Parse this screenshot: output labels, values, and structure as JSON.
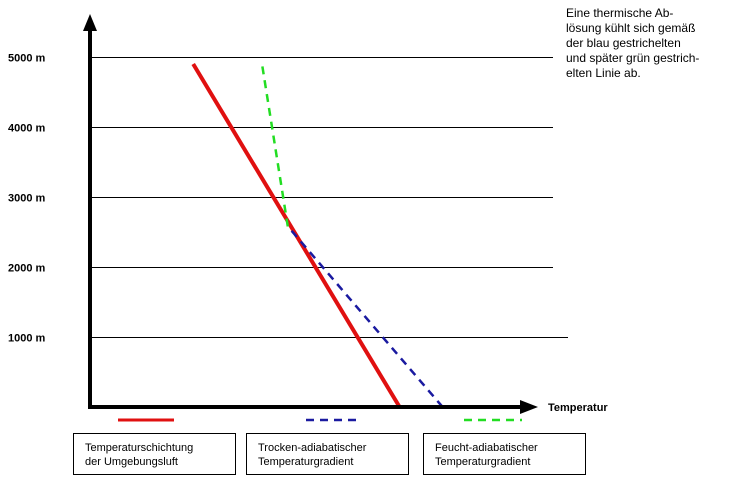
{
  "chart_data": {
    "type": "line",
    "xlabel": "Temperatur",
    "ylabel": "",
    "y_ticks": [
      "1000 m",
      "2000 m",
      "3000 m",
      "4000 m",
      "5000 m"
    ],
    "grid": true,
    "series": [
      {
        "key": "environment",
        "name": "Temperaturschichtung der Umgebungsluft",
        "legend_lines": [
          "Temperaturschichtung",
          "der Umgebungsluft"
        ],
        "color": "#e01010",
        "style": "solid",
        "points": [
          [
            0.72,
            0
          ],
          [
            0.24,
            4900
          ]
        ]
      },
      {
        "key": "dry",
        "name": "Trocken-adiabatischer Temperaturgradient",
        "legend_lines": [
          "Trocken-adiabatischer",
          "Temperaturgradient"
        ],
        "color": "#1a1aa0",
        "style": "dashed",
        "points": [
          [
            0.82,
            0
          ],
          [
            0.46,
            2580
          ]
        ]
      },
      {
        "key": "moist",
        "name": "Feucht-adiabatischer Temperaturgradient",
        "legend_lines": [
          "Feucht-adiabatischer",
          "Temperaturgradient"
        ],
        "color": "#22dd22",
        "style": "dashed",
        "points": [
          [
            0.46,
            2580
          ],
          [
            0.4,
            4900
          ]
        ]
      }
    ]
  },
  "note": {
    "lines": [
      "Eine thermische Ab-",
      "lösung kühlt sich gemäß",
      "der blau gestrichelten",
      "und später grün gestrich-",
      "elten Linie ab."
    ]
  }
}
